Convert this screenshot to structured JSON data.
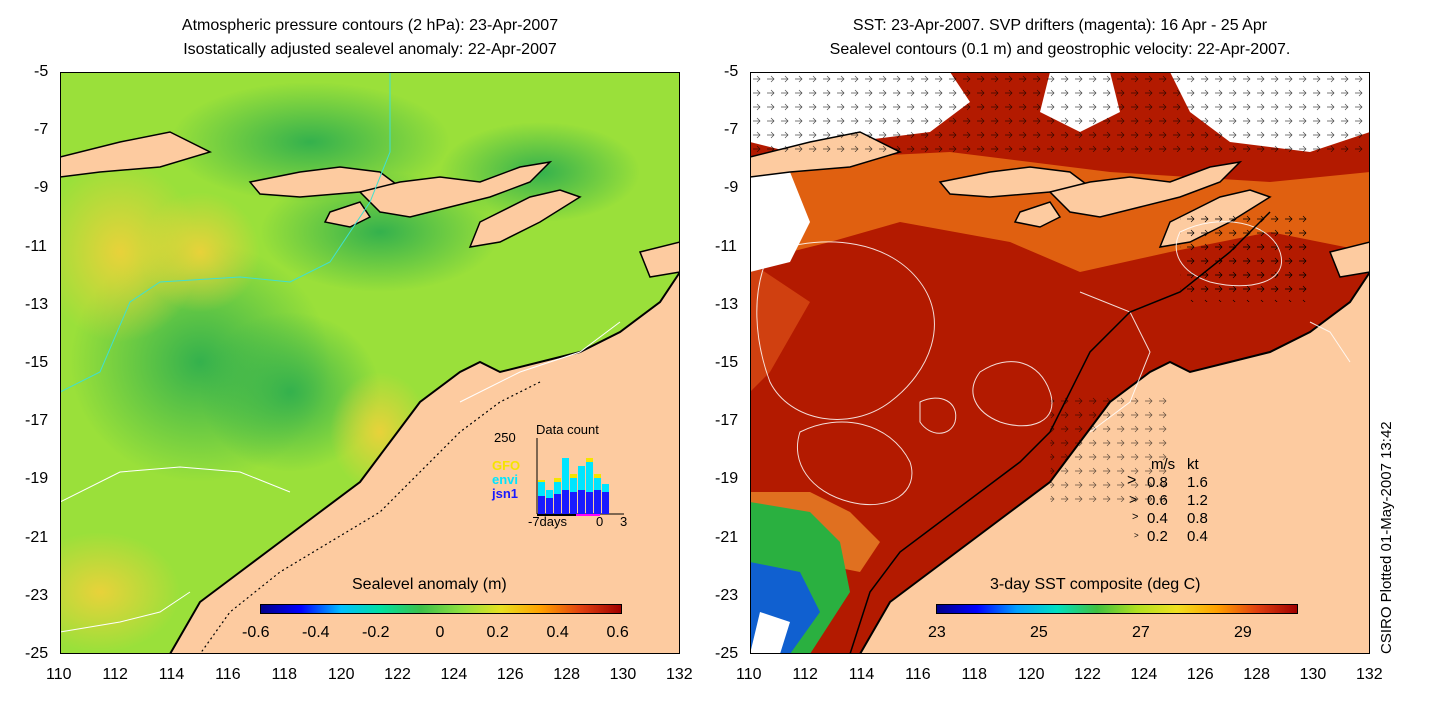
{
  "left_panel": {
    "title_line1": "Atmospheric pressure contours (2 hPa): 23-Apr-2007",
    "title_line2": "Isostatically adjusted sealevel anomaly: 22-Apr-2007",
    "colorbar_label": "Sealevel anomaly (m)",
    "colorbar_ticks": [
      "-0.6",
      "-0.4",
      "-0.2",
      "0",
      "0.2",
      "0.4",
      "0.6"
    ],
    "inset": {
      "title": "Data count",
      "ymax_label": "250",
      "legend": [
        {
          "label": "GFO",
          "color": "#f5e400"
        },
        {
          "label": "envi",
          "color": "#00e5ff"
        },
        {
          "label": "jsn1",
          "color": "#1a1aff"
        }
      ],
      "xlabels": [
        "-7days",
        "0",
        "3"
      ]
    }
  },
  "right_panel": {
    "title_line1": "SST: 23-Apr-2007. SVP drifters (magenta): 16 Apr - 25 Apr",
    "title_line2": "Sealevel contours (0.1 m) and geostrophic velocity: 22-Apr-2007.",
    "colorbar_label": "3-day SST composite (deg C)",
    "colorbar_ticks": [
      "23",
      "25",
      "27",
      "29"
    ],
    "velocity_legend": {
      "header_ms": "m/s",
      "header_kt": "kt",
      "rows": [
        {
          "ms": "0.8",
          "kt": "1.6"
        },
        {
          "ms": "0.6",
          "kt": "1.2"
        },
        {
          "ms": "0.4",
          "kt": "0.8"
        },
        {
          "ms": "0.2",
          "kt": "0.4"
        }
      ]
    }
  },
  "axes": {
    "x_ticks": [
      "110",
      "112",
      "114",
      "116",
      "118",
      "120",
      "122",
      "124",
      "126",
      "128",
      "130",
      "132"
    ],
    "y_ticks": [
      "-5",
      "-7",
      "-9",
      "-11",
      "-13",
      "-15",
      "-17",
      "-19",
      "-21",
      "-23",
      "-25"
    ]
  },
  "credit": "CSIRO Plotted 01-May-2007 13:42",
  "colors": {
    "land": "#fdcba0",
    "ocean_left": "#8de042",
    "ocean_right": "#b31a00"
  }
}
